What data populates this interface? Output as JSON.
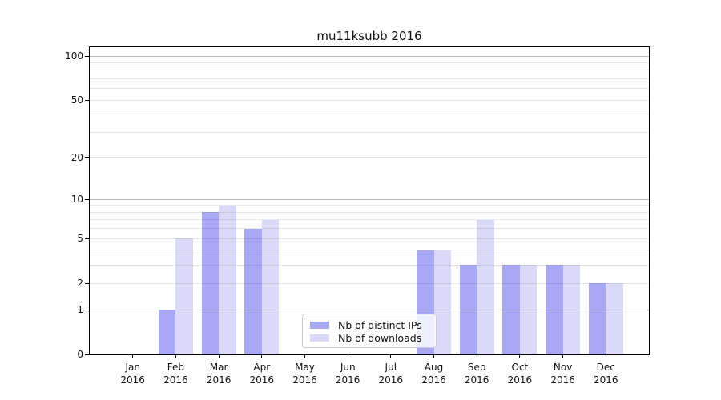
{
  "chart_data": {
    "type": "bar",
    "title": "mu11ksubb 2016",
    "categories": [
      "Jan",
      "Feb",
      "Mar",
      "Apr",
      "May",
      "Jun",
      "Jul",
      "Aug",
      "Sep",
      "Oct",
      "Nov",
      "Dec"
    ],
    "x_tick_second_line": "2016",
    "series": [
      {
        "name": "Nb of distinct IPs",
        "color": "#a8a8f5",
        "values": [
          0,
          1,
          8,
          6,
          0,
          0,
          0,
          4,
          3,
          3,
          3,
          2
        ]
      },
      {
        "name": "Nb of downloads",
        "color": "#dadaf8",
        "values": [
          0,
          5,
          9,
          7,
          0,
          0,
          0,
          4,
          7,
          3,
          3,
          2
        ]
      }
    ],
    "y_axis": {
      "scale": "log1p",
      "tick_labels": [
        "0",
        "1",
        "2",
        "5",
        "10",
        "20",
        "50",
        "100"
      ],
      "tick_values": [
        0,
        1,
        2,
        5,
        10,
        20,
        50,
        100
      ],
      "major_gridlines": [
        1,
        10,
        100
      ],
      "minor_gridlines": [
        2,
        3,
        4,
        5,
        6,
        7,
        8,
        9,
        20,
        30,
        40,
        50,
        60,
        70,
        80,
        90
      ],
      "range": [
        0,
        115
      ]
    },
    "grid": true,
    "legend_position": "lower center",
    "bar_group": "side-by-side"
  }
}
